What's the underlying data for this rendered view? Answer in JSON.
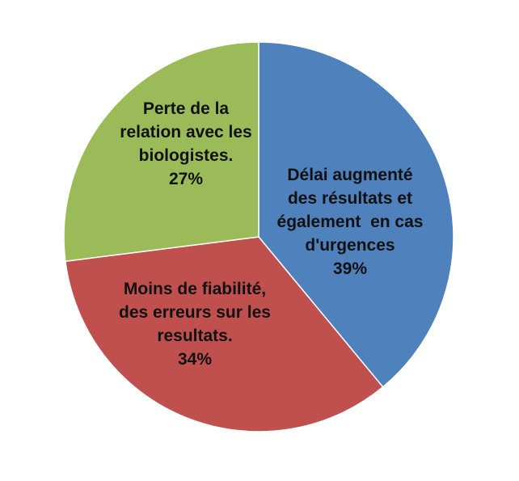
{
  "chart_data": {
    "type": "pie",
    "title": "",
    "slices": [
      {
        "label_lines": [
          "Délai augmenté",
          "des résultats et",
          "également  en cas",
          "d'urgences"
        ],
        "percent_label": "39%",
        "value": 39,
        "color": "#4F81BD"
      },
      {
        "label_lines": [
          "Moins de fiabilité,",
          "des erreurs sur les",
          "resultats."
        ],
        "percent_label": "34%",
        "value": 34,
        "color": "#C0504D"
      },
      {
        "label_lines": [
          "Perte de la",
          "relation avec les",
          "biologistes."
        ],
        "percent_label": "27%",
        "value": 27,
        "color": "#9BBB59"
      }
    ],
    "start_angle": "12 o'clock",
    "direction": "clockwise",
    "legend": "none"
  }
}
